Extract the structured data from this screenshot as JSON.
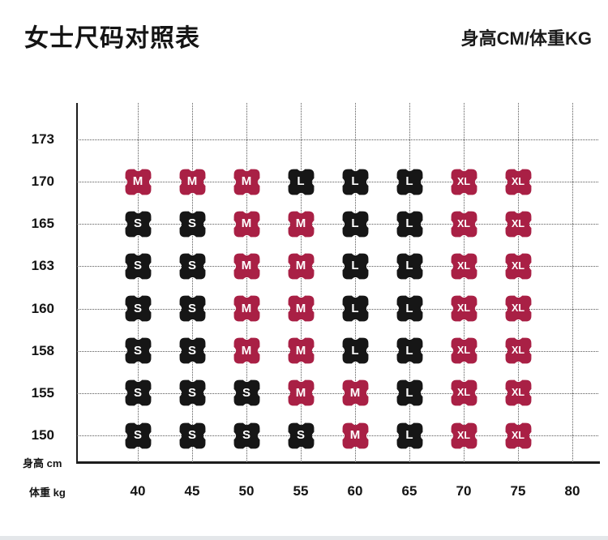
{
  "header": {
    "title": "女士尺码对照表",
    "unit_label": "身高CM/体重KG"
  },
  "chart_data": {
    "type": "heatmap",
    "title": "女士尺码对照表",
    "xlabel": "体重 kg",
    "ylabel": "身高 cm",
    "x_ticks": [
      40,
      45,
      50,
      55,
      60,
      65,
      70,
      75,
      80
    ],
    "y_ticks": [
      173,
      170,
      165,
      163,
      160,
      158,
      155,
      150
    ],
    "badge_weights": [
      40,
      45,
      50,
      55,
      60,
      65,
      70,
      75
    ],
    "size_colors": {
      "S": "#161616",
      "M": "#a92045",
      "L": "#161616",
      "XL": "#a92045"
    },
    "rows": [
      {
        "height": 173,
        "sizes": [
          "",
          "",
          "",
          "",
          "",
          "",
          "",
          ""
        ]
      },
      {
        "height": 170,
        "sizes": [
          "M",
          "M",
          "M",
          "L",
          "L",
          "L",
          "XL",
          "XL"
        ]
      },
      {
        "height": 165,
        "sizes": [
          "S",
          "S",
          "M",
          "M",
          "L",
          "L",
          "XL",
          "XL"
        ]
      },
      {
        "height": 163,
        "sizes": [
          "S",
          "S",
          "M",
          "M",
          "L",
          "L",
          "XL",
          "XL"
        ]
      },
      {
        "height": 160,
        "sizes": [
          "S",
          "S",
          "M",
          "M",
          "L",
          "L",
          "XL",
          "XL"
        ]
      },
      {
        "height": 158,
        "sizes": [
          "S",
          "S",
          "M",
          "M",
          "L",
          "L",
          "XL",
          "XL"
        ]
      },
      {
        "height": 155,
        "sizes": [
          "S",
          "S",
          "S",
          "M",
          "M",
          "L",
          "XL",
          "XL"
        ]
      },
      {
        "height": 150,
        "sizes": [
          "S",
          "S",
          "S",
          "S",
          "M",
          "L",
          "XL",
          "XL"
        ]
      }
    ]
  }
}
